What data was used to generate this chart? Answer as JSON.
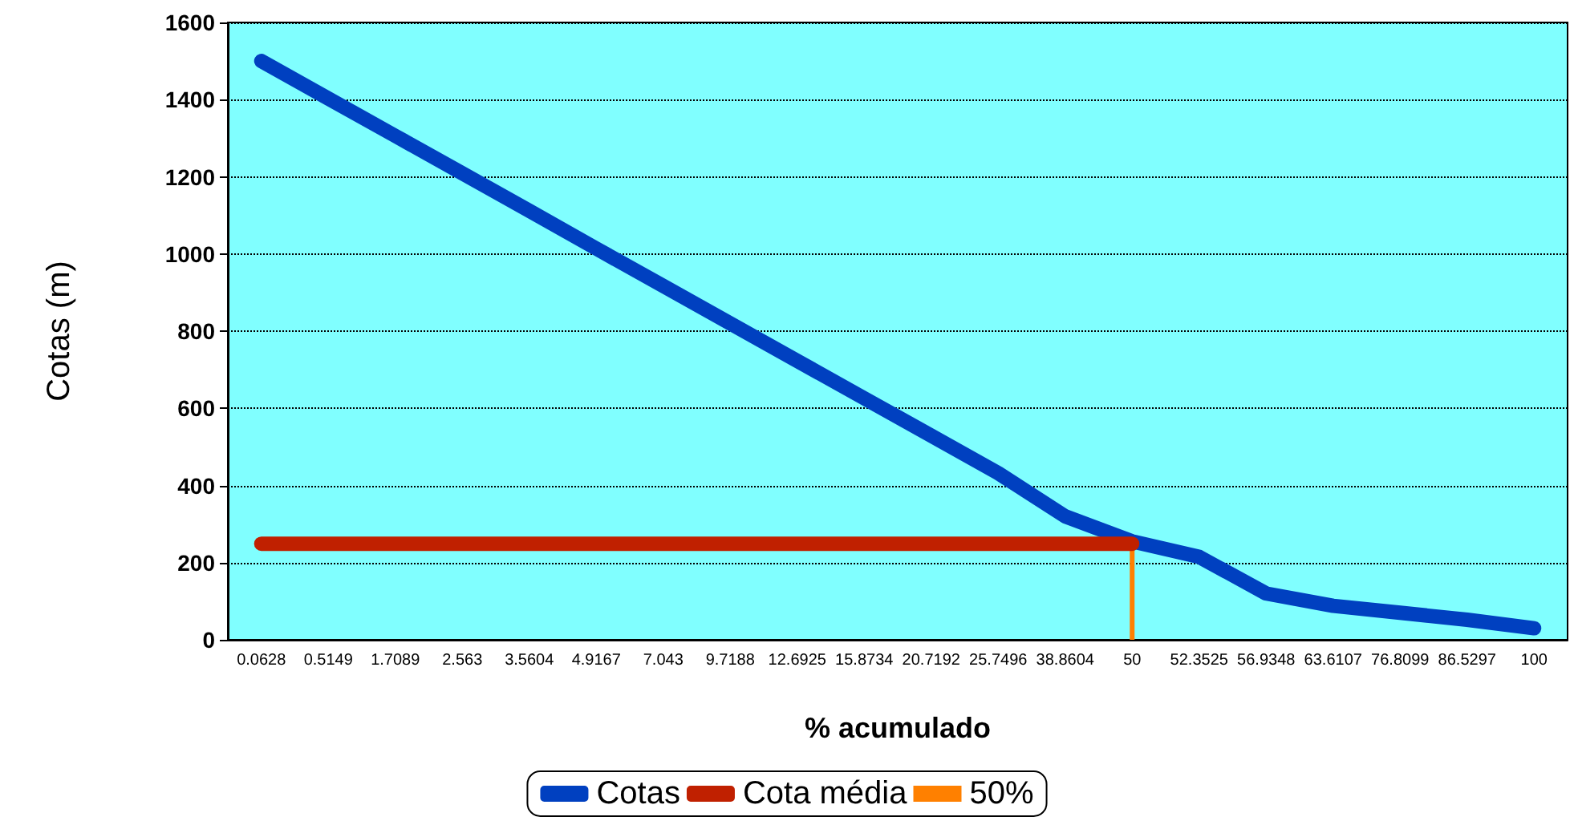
{
  "chart_data": {
    "type": "line",
    "xlabel": "% acumulado",
    "ylabel": "Cotas (m)",
    "categories": [
      "0.0628",
      "0.5149",
      "1.7089",
      "2.563",
      "3.5604",
      "4.9167",
      "7.043",
      "9.7188",
      "12.6925",
      "15.8734",
      "20.7192",
      "25.7496",
      "38.8604",
      "50",
      "52.3525",
      "56.9348",
      "63.6107",
      "76.8099",
      "86.5297",
      "100"
    ],
    "series": [
      {
        "name": "Cotas",
        "color": "#0040c0",
        "values": [
          1500,
          1403,
          1306,
          1209,
          1112,
          1014,
          917,
          820,
          723,
          626,
          529,
          432,
          320,
          255,
          215,
          120,
          88,
          70,
          52,
          30
        ]
      },
      {
        "name": "Cota média",
        "color": "#c02000",
        "values": [
          249,
          249,
          249,
          249,
          249,
          249,
          249,
          249,
          249,
          249,
          249,
          249,
          249,
          249,
          null,
          null,
          null,
          null,
          null,
          null
        ]
      },
      {
        "name": "50%",
        "type": "bar",
        "color": "#ff8000",
        "values": [
          null,
          null,
          null,
          null,
          null,
          null,
          null,
          null,
          null,
          null,
          null,
          null,
          null,
          249,
          null,
          null,
          null,
          null,
          null,
          null
        ]
      }
    ],
    "ylim": [
      0,
      1600
    ],
    "yticks": [
      0,
      200,
      400,
      600,
      800,
      1000,
      1200,
      1400,
      1600
    ],
    "grid": "y",
    "legend": "bottom",
    "marker": "none",
    "line_style": "solid"
  }
}
